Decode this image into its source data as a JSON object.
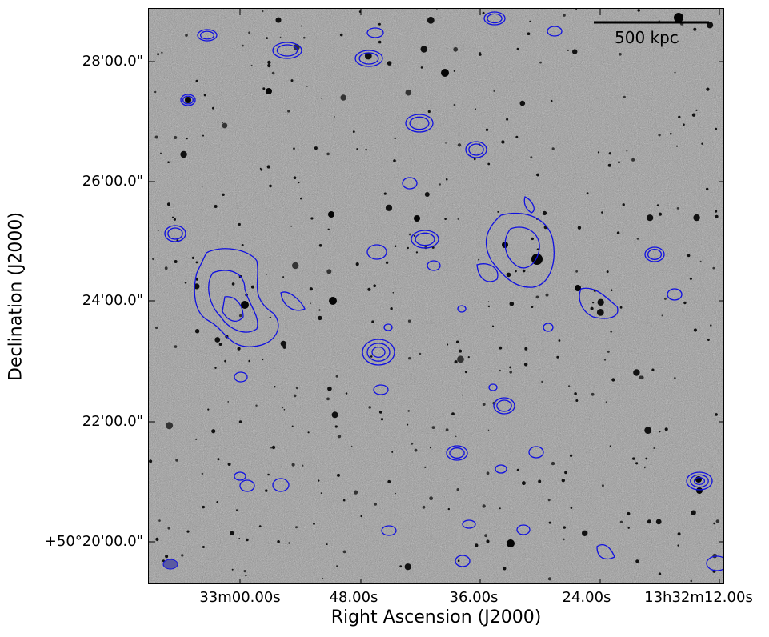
{
  "figure": {
    "xlabel": "Right Ascension (J2000)",
    "ylabel": "Declination (J2000)",
    "scalebar_label": "500 kpc",
    "contour_color": "#1010e0",
    "background_color": "#9a9a9a",
    "x_ticks": [
      "33m00.00s",
      "48.00s",
      "36.00s",
      "24.00s",
      "13h32m12.00s"
    ],
    "y_ticks": [
      "28'00.0\"",
      "26'00.0\"",
      "24'00.0\"",
      "22'00.0\"",
      "+50°20'00.0\""
    ]
  }
}
